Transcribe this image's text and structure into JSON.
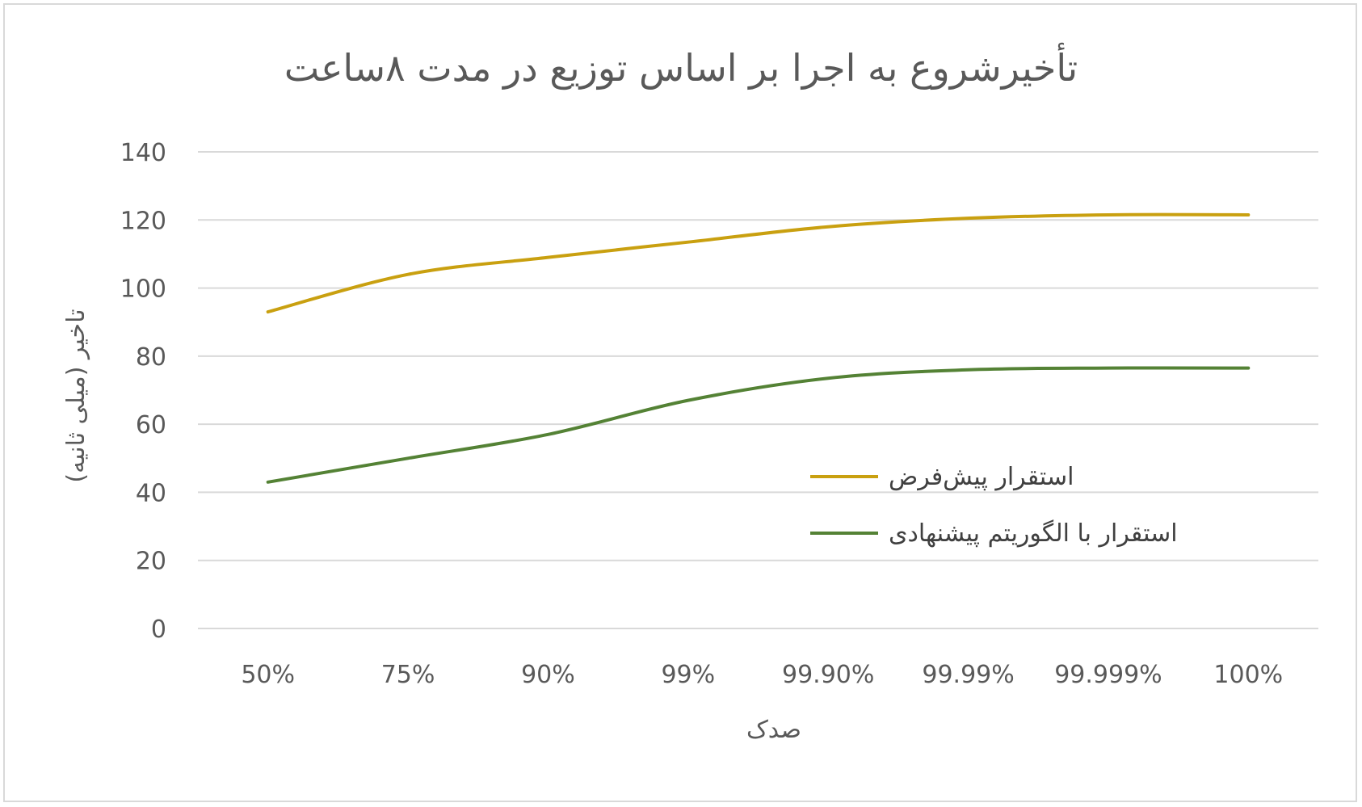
{
  "chart_data": {
    "type": "line",
    "title": "تأخیرشروع به اجرا بر اساس توزیع در مدت ۸ساعت",
    "xlabel": "صدک",
    "ylabel": "تاخیر (میلی ثانیه)",
    "categories": [
      "50%",
      "75%",
      "90%",
      "99%",
      "99.90%",
      "99.99%",
      "99.999%",
      "100%"
    ],
    "ylim": [
      0,
      140
    ],
    "yticks": [
      0,
      20,
      40,
      60,
      80,
      100,
      120,
      140
    ],
    "grid": true,
    "legend_position": "right",
    "series": [
      {
        "name": "استقرار پیش‌فرض",
        "color": "#C9A010",
        "values": [
          93,
          104,
          109,
          113.5,
          118,
          120.5,
          121.5,
          121.5
        ]
      },
      {
        "name": "استقرار با الگوریتم پیشنهادی",
        "color": "#548235",
        "values": [
          43,
          50,
          57,
          67,
          73.5,
          76,
          76.5,
          76.5
        ]
      }
    ]
  }
}
